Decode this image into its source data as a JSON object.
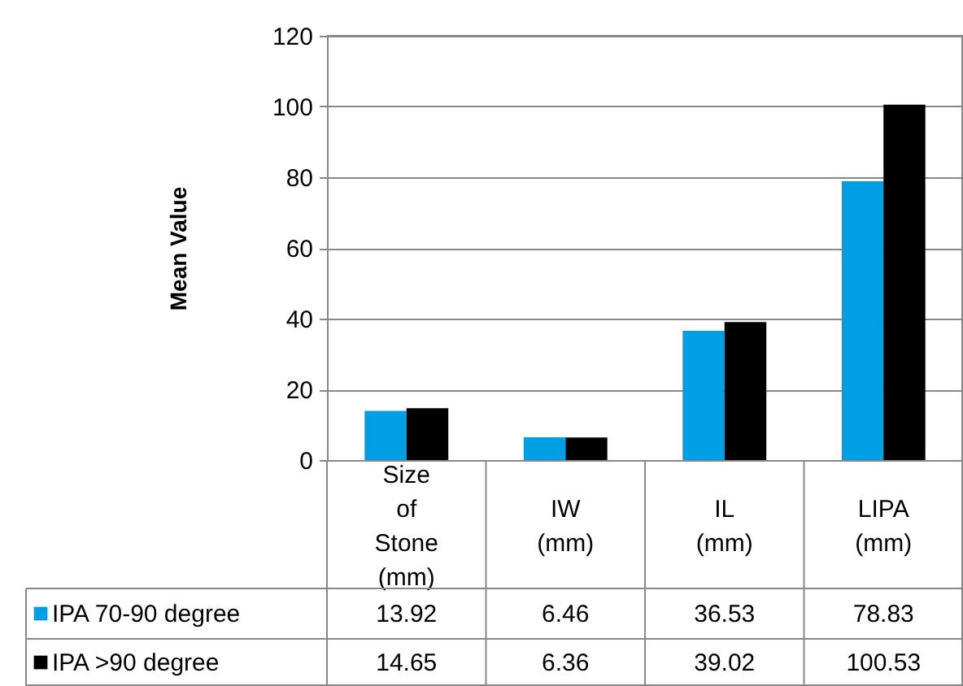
{
  "chart_data": {
    "type": "bar",
    "ylabel": "Mean Value",
    "categories": [
      "Size of Stone (mm)",
      "IW (mm)",
      "IL (mm)",
      "LIPA (mm)"
    ],
    "series": [
      {
        "name": "IPA 70-90 degree",
        "color": "#009fe3",
        "values": [
          13.92,
          6.46,
          36.53,
          78.83
        ]
      },
      {
        "name": "IPA >90 degree",
        "color": "#000000",
        "values": [
          14.65,
          6.36,
          39.02,
          100.53
        ]
      }
    ],
    "ylim": [
      0,
      120
    ],
    "yticks": [
      0,
      20,
      40,
      60,
      80,
      100,
      120
    ],
    "grid": "y",
    "legend": "bottom",
    "data_labels": true
  }
}
